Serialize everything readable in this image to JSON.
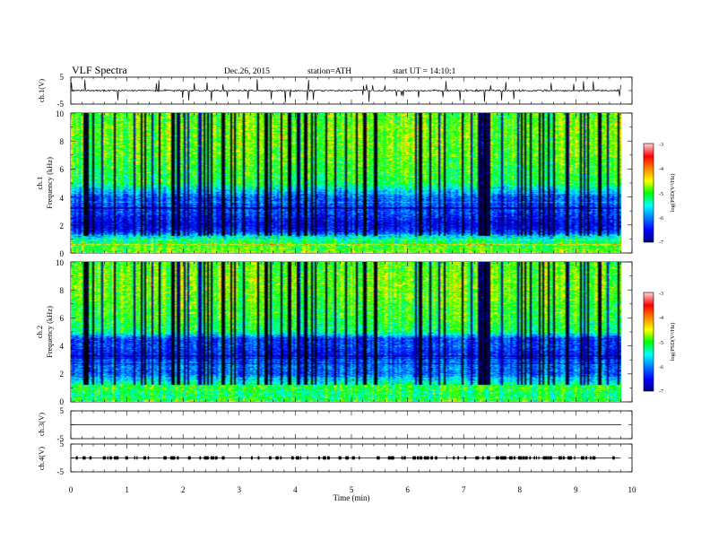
{
  "header": {
    "title": "VLF  Spectra",
    "date": "Dec.26, 2015",
    "station": "station=ATH",
    "start": "start  UT =    14:10:1"
  },
  "colors": {
    "spectrum_scale": [
      "#000080",
      "#0000ff",
      "#0080ff",
      "#00ffff",
      "#00ff00",
      "#ffff00",
      "#ff8000",
      "#ff0000",
      "#ffc0c0"
    ],
    "trace": "#000000",
    "frame": "#000000"
  },
  "chart_data": [
    {
      "type": "line",
      "panel": "ch1-waveform",
      "ylabel": "ch.1(V)",
      "yticks": [
        "5",
        "-5"
      ],
      "ylim": [
        -5,
        5
      ],
      "xlim": [
        0,
        10
      ],
      "series": [
        {
          "baseline": 0.0,
          "noise_amplitude": 0.6,
          "spike_amplitude": 4.5
        }
      ]
    },
    {
      "type": "heatmap",
      "panel": "ch1-spectrogram",
      "ylabel_top": "ch.1",
      "ylabel": "Frequency  (kHz)",
      "yticks": [
        "0",
        "2",
        "4",
        "6",
        "8",
        "10"
      ],
      "ylim": [
        0,
        10
      ],
      "xlim": [
        0,
        9.8
      ],
      "colorbar": {
        "label": "log(PSD(V²/Hz)",
        "ticks": [
          "-3",
          "-4",
          "-5",
          "-6",
          "-7"
        ],
        "range": [
          -7,
          -3
        ]
      },
      "profile": {
        "frequency_khz": [
          0,
          0.5,
          1,
          1.5,
          2,
          2.5,
          3,
          3.5,
          4,
          4.5,
          5,
          6,
          7,
          8,
          9,
          10
        ],
        "log_psd": [
          -4.8,
          -5.0,
          -5.4,
          -6.3,
          -6.6,
          -6.4,
          -6.2,
          -6.2,
          -6.1,
          -5.6,
          -5.1,
          -5.0,
          -4.9,
          -4.8,
          -4.8,
          -4.9
        ]
      }
    },
    {
      "type": "heatmap",
      "panel": "ch2-spectrogram",
      "ylabel_top": "ch.2",
      "ylabel": "Frequency  (kHz)",
      "yticks": [
        "0",
        "2",
        "4",
        "6",
        "8",
        "10"
      ],
      "ylim": [
        0,
        10
      ],
      "xlim": [
        0,
        9.8
      ],
      "colorbar": {
        "label": "log(PSD(V²/Hz)",
        "ticks": [
          "-3",
          "-4",
          "-5",
          "-6",
          "-7"
        ],
        "range": [
          -7,
          -3
        ]
      },
      "profile": {
        "frequency_khz": [
          0,
          0.5,
          1,
          1.5,
          2,
          2.5,
          3,
          3.5,
          4,
          4.5,
          5,
          6,
          7,
          8,
          9,
          10
        ],
        "log_psd": [
          -5.0,
          -5.2,
          -5.0,
          -5.6,
          -6.1,
          -6.0,
          -6.2,
          -6.4,
          -6.2,
          -6.3,
          -5.2,
          -5.0,
          -4.9,
          -4.8,
          -4.8,
          -4.9
        ]
      }
    },
    {
      "type": "line",
      "panel": "ch3-waveform",
      "ylabel": "ch.3(V)",
      "yticks": [
        "5",
        "-5"
      ],
      "ylim": [
        -5,
        5
      ],
      "xlim": [
        0,
        10
      ],
      "series": [
        {
          "baseline": 0.0
        }
      ]
    },
    {
      "type": "line",
      "panel": "ch4-waveform",
      "ylabel": "ch.4(V)",
      "yticks": [
        "5",
        "-5"
      ],
      "ylim": [
        -5,
        5
      ],
      "xlim": [
        0,
        10
      ],
      "series": [
        {
          "baseline": 0.0,
          "pulse_amplitude": 0.6
        }
      ]
    }
  ],
  "xaxis": {
    "label": "Time  (min)",
    "ticks": [
      "0",
      "1",
      "2",
      "3",
      "4",
      "5",
      "6",
      "7",
      "8",
      "9",
      "10"
    ],
    "range": [
      0,
      10
    ],
    "data_end": 9.8
  }
}
